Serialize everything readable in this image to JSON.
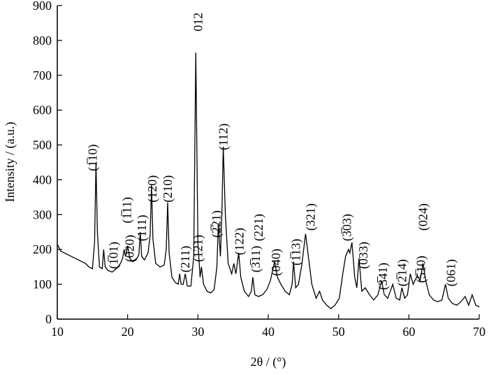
{
  "chart_data": {
    "type": "line",
    "xlabel": "2θ / (°)",
    "ylabel": "Intensity / (a.u.)",
    "xlim": [
      10,
      70
    ],
    "xticks": [
      10,
      20,
      30,
      40,
      50,
      60,
      70
    ],
    "ylim": [
      0,
      900
    ],
    "yticks": [
      0,
      100,
      200,
      300,
      400,
      500,
      600,
      700,
      800,
      900
    ],
    "x": [
      10,
      10.5,
      11,
      11.5,
      12,
      12.5,
      13,
      13.5,
      14,
      14.5,
      15,
      15.3,
      15.5,
      15.7,
      16,
      16.4,
      16.6,
      16.8,
      17.2,
      17.8,
      18.4,
      19,
      19.3,
      19.5,
      19.7,
      20,
      20.3,
      20.7,
      21.2,
      21.6,
      21.8,
      22,
      22.4,
      22.9,
      23.2,
      23.4,
      23.6,
      24,
      24.6,
      25.2,
      25.5,
      25.7,
      25.9,
      26.3,
      26.8,
      27.2,
      27.4,
      27.6,
      27.9,
      28.2,
      28.5,
      29,
      29.4,
      29.7,
      30,
      30.3,
      30.5,
      30.8,
      31.3,
      31.8,
      32.3,
      32.7,
      32.9,
      33.2,
      33.4,
      33.6,
      33.9,
      34.3,
      34.8,
      35.1,
      35.4,
      35.8,
      36.1,
      36.6,
      37.2,
      37.6,
      37.8,
      38.1,
      38.6,
      39.2,
      39.8,
      40.3,
      40.9,
      41.3,
      41.8,
      42.4,
      43,
      43.4,
      43.6,
      43.9,
      44.3,
      44.8,
      45.3,
      45.7,
      46.2,
      46.8,
      47.3,
      47.7,
      48.3,
      48.9,
      49.5,
      50.1,
      50.6,
      51,
      51.4,
      51.6,
      51.9,
      52.3,
      52.6,
      52.9,
      53.3,
      53.8,
      54.4,
      55,
      55.6,
      56.1,
      56.5,
      57,
      57.7,
      58.2,
      58.7,
      59,
      59.4,
      59.8,
      60.2,
      60.6,
      61.2,
      61.6,
      62,
      62.4,
      62.9,
      63.5,
      64.1,
      64.7,
      65.2,
      65.6,
      66.2,
      66.8,
      67.4,
      68,
      68.5,
      69,
      69.5,
      70
    ],
    "series": [
      {
        "color": "#000000",
        "values": [
          215,
          195,
          190,
          185,
          180,
          175,
          170,
          165,
          160,
          150,
          145,
          220,
          450,
          250,
          150,
          145,
          200,
          150,
          140,
          135,
          145,
          160,
          175,
          200,
          180,
          210,
          175,
          165,
          170,
          185,
          250,
          180,
          170,
          190,
          240,
          385,
          230,
          160,
          150,
          155,
          200,
          335,
          190,
          120,
          105,
          100,
          130,
          100,
          100,
          130,
          95,
          95,
          180,
          765,
          220,
          120,
          150,
          100,
          80,
          75,
          85,
          150,
          275,
          180,
          300,
          495,
          300,
          160,
          130,
          160,
          130,
          190,
          120,
          80,
          65,
          80,
          120,
          70,
          65,
          70,
          85,
          110,
          165,
          120,
          100,
          80,
          70,
          100,
          165,
          90,
          100,
          160,
          245,
          180,
          100,
          60,
          80,
          55,
          40,
          30,
          40,
          60,
          130,
          180,
          200,
          190,
          220,
          120,
          90,
          175,
          80,
          90,
          70,
          55,
          70,
          110,
          70,
          60,
          100,
          60,
          55,
          90,
          60,
          70,
          130,
          100,
          125,
          110,
          160,
          110,
          70,
          55,
          50,
          55,
          100,
          60,
          45,
          40,
          50,
          65,
          40,
          70,
          40,
          35
        ]
      }
    ],
    "annotations": [
      {
        "text": "(1̅10)",
        "x": 15.0,
        "y": 425
      },
      {
        "text": "(1̅01)",
        "x": 18.0,
        "y": 144
      },
      {
        "text": "(020)",
        "x": 20.3,
        "y": 164
      },
      {
        "text": "(1̅11)",
        "x": 19.9,
        "y": 275
      },
      {
        "text": "(111)",
        "x": 22.0,
        "y": 224
      },
      {
        "text": "(120)",
        "x": 23.5,
        "y": 335
      },
      {
        "text": "(210)",
        "x": 25.7,
        "y": 335
      },
      {
        "text": "(211)",
        "x": 28.2,
        "y": 134
      },
      {
        "text": "(121)",
        "x": 30.0,
        "y": 164
      },
      {
        "text": "012",
        "x": 30.0,
        "y": 826
      },
      {
        "text": "(2̅21)",
        "x": 32.6,
        "y": 234
      },
      {
        "text": "(112)",
        "x": 33.6,
        "y": 485
      },
      {
        "text": "(122)",
        "x": 35.9,
        "y": 184
      },
      {
        "text": "(3̅11)",
        "x": 38.2,
        "y": 134
      },
      {
        "text": "(221)",
        "x": 38.6,
        "y": 224
      },
      {
        "text": "(040)",
        "x": 41.1,
        "y": 124
      },
      {
        "text": "(1̅13)",
        "x": 43.9,
        "y": 154
      },
      {
        "text": "(321)",
        "x": 46.0,
        "y": 254
      },
      {
        "text": "(3̅03)",
        "x": 51.2,
        "y": 224
      },
      {
        "text": "(033)",
        "x": 53.5,
        "y": 144
      },
      {
        "text": "(3̅41)",
        "x": 56.3,
        "y": 84
      },
      {
        "text": "(2̅14)",
        "x": 59.0,
        "y": 94
      },
      {
        "text": "(024)",
        "x": 62.0,
        "y": 254
      },
      {
        "text": "(5̅10)",
        "x": 61.7,
        "y": 104
      },
      {
        "text": "(061)",
        "x": 66.0,
        "y": 94
      }
    ]
  }
}
